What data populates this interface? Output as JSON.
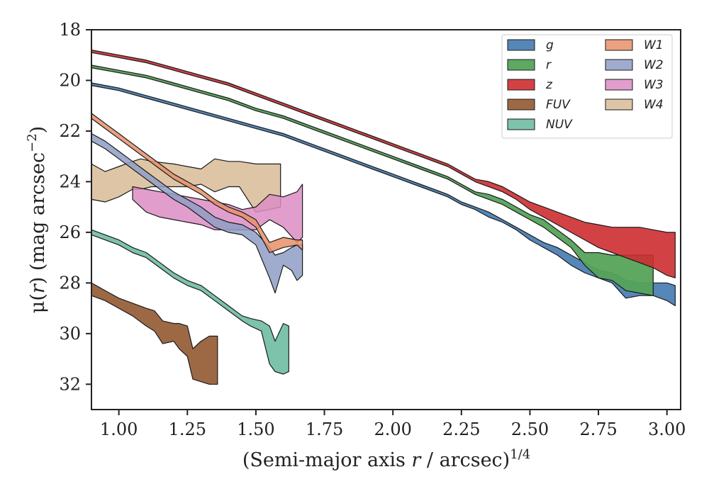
{
  "chart_data": {
    "type": "area",
    "xlabel": {
      "prefix": "(Semi-major axis ",
      "var": "r",
      "mid": " / arcsec)",
      "sup": "1/4"
    },
    "ylabel": {
      "prefix": "μ(",
      "var": "r",
      "mid": ") (mag arcsec",
      "sup": "−2",
      "suffix": ")"
    },
    "xlim": [
      0.9,
      3.05
    ],
    "ylim": [
      33.0,
      18.0
    ],
    "y_inverted": true,
    "xticks": [
      1.0,
      1.25,
      1.5,
      1.75,
      2.0,
      2.25,
      2.5,
      2.75,
      3.0
    ],
    "xtick_labels": [
      "1.00",
      "1.25",
      "1.50",
      "1.75",
      "2.00",
      "2.25",
      "2.50",
      "2.75",
      "3.00"
    ],
    "yticks": [
      18,
      20,
      22,
      24,
      26,
      28,
      30,
      32
    ],
    "ytick_labels": [
      "18",
      "20",
      "22",
      "24",
      "26",
      "28",
      "30",
      "32"
    ],
    "legend": {
      "placement": "top-right",
      "columns": 2
    },
    "series": [
      {
        "name": "FUV",
        "color": "#8c4f25",
        "alpha": 0.85,
        "x": [
          0.9,
          0.95,
          1.0,
          1.05,
          1.1,
          1.13,
          1.16,
          1.2,
          1.22,
          1.25,
          1.27,
          1.3,
          1.33,
          1.36
        ],
        "y_upper": [
          28.0,
          28.3,
          28.6,
          28.8,
          29.0,
          29.1,
          29.5,
          29.6,
          29.6,
          29.7,
          30.6,
          30.3,
          30.1,
          30.1
        ],
        "y_lower": [
          28.5,
          28.7,
          29.0,
          29.3,
          29.7,
          29.9,
          30.4,
          30.3,
          30.6,
          30.9,
          31.8,
          31.9,
          32.0,
          32.0
        ]
      },
      {
        "name": "NUV",
        "color": "#66b89c",
        "alpha": 0.85,
        "x": [
          0.9,
          0.95,
          1.0,
          1.05,
          1.1,
          1.15,
          1.2,
          1.25,
          1.3,
          1.35,
          1.4,
          1.45,
          1.48,
          1.52,
          1.55,
          1.57,
          1.6,
          1.62
        ],
        "y_upper": [
          25.9,
          26.1,
          26.3,
          26.6,
          26.8,
          27.2,
          27.6,
          27.9,
          28.1,
          28.5,
          28.9,
          29.3,
          29.4,
          29.5,
          29.7,
          30.3,
          29.6,
          29.7
        ],
        "y_lower": [
          26.1,
          26.3,
          26.5,
          26.8,
          27.0,
          27.4,
          27.8,
          28.1,
          28.3,
          28.7,
          29.1,
          29.5,
          29.7,
          29.9,
          31.2,
          31.5,
          31.6,
          31.5
        ]
      },
      {
        "name": "W4",
        "color": "#d8bb96",
        "alpha": 0.85,
        "x": [
          0.9,
          0.95,
          1.0,
          1.05,
          1.08,
          1.12,
          1.2,
          1.25,
          1.3,
          1.35,
          1.4,
          1.44,
          1.5,
          1.55,
          1.59
        ],
        "y_upper": [
          23.3,
          23.6,
          23.4,
          23.2,
          23.1,
          23.2,
          23.3,
          23.4,
          23.5,
          23.1,
          23.2,
          23.2,
          23.3,
          23.3,
          23.3
        ],
        "y_lower": [
          24.7,
          24.8,
          24.6,
          24.3,
          24.3,
          24.2,
          24.2,
          24.2,
          24.1,
          24.4,
          24.2,
          24.2,
          25.2,
          25.1,
          25.0
        ]
      },
      {
        "name": "W3",
        "color": "#dc8dc4",
        "alpha": 0.85,
        "x": [
          1.05,
          1.1,
          1.15,
          1.2,
          1.25,
          1.3,
          1.35,
          1.4,
          1.45,
          1.5,
          1.55,
          1.6,
          1.65,
          1.67
        ],
        "y_upper": [
          24.2,
          24.3,
          24.4,
          24.5,
          24.6,
          24.7,
          24.8,
          24.9,
          25.1,
          25.0,
          24.5,
          24.6,
          24.4,
          24.1
        ],
        "y_lower": [
          24.7,
          25.2,
          25.4,
          25.5,
          25.6,
          25.7,
          25.9,
          25.9,
          25.9,
          25.9,
          25.5,
          25.8,
          26.4,
          26.2
        ]
      },
      {
        "name": "W2",
        "color": "#8f9ec4",
        "alpha": 0.85,
        "x": [
          0.9,
          0.95,
          1.0,
          1.05,
          1.1,
          1.15,
          1.2,
          1.25,
          1.3,
          1.35,
          1.4,
          1.45,
          1.5,
          1.55,
          1.57,
          1.6,
          1.63,
          1.65,
          1.67
        ],
        "y_upper": [
          22.1,
          22.4,
          22.8,
          23.2,
          23.6,
          24.0,
          24.4,
          24.7,
          25.0,
          25.4,
          25.6,
          25.7,
          26.0,
          26.6,
          26.9,
          26.8,
          26.6,
          26.5,
          26.5
        ],
        "y_lower": [
          22.4,
          22.7,
          23.1,
          23.5,
          23.9,
          24.3,
          24.7,
          25.0,
          25.4,
          25.8,
          26.0,
          26.1,
          26.5,
          27.8,
          28.4,
          27.3,
          27.5,
          27.9,
          27.7
        ]
      },
      {
        "name": "W1",
        "color": "#e8906a",
        "alpha": 0.85,
        "x": [
          0.9,
          0.95,
          1.0,
          1.05,
          1.1,
          1.15,
          1.2,
          1.25,
          1.3,
          1.35,
          1.4,
          1.45,
          1.5,
          1.55,
          1.6,
          1.65,
          1.67
        ],
        "y_upper": [
          21.3,
          21.7,
          22.1,
          22.5,
          22.9,
          23.3,
          23.7,
          24.0,
          24.3,
          24.7,
          25.0,
          25.2,
          25.5,
          26.4,
          26.2,
          26.3,
          26.3
        ],
        "y_lower": [
          21.5,
          21.9,
          22.3,
          22.7,
          23.1,
          23.5,
          23.9,
          24.2,
          24.5,
          24.9,
          25.2,
          25.4,
          25.8,
          26.8,
          26.6,
          26.5,
          26.7
        ]
      },
      {
        "name": "g",
        "color": "#4c81b4",
        "alpha": 0.95,
        "x": [
          0.9,
          1.0,
          1.1,
          1.2,
          1.3,
          1.4,
          1.5,
          1.6,
          1.7,
          1.8,
          1.9,
          2.0,
          2.1,
          2.2,
          2.25,
          2.3,
          2.35,
          2.4,
          2.45,
          2.5,
          2.55,
          2.6,
          2.65,
          2.7,
          2.75,
          2.8,
          2.85,
          2.9,
          2.95,
          3.0,
          3.03
        ],
        "y_upper": [
          20.1,
          20.3,
          20.6,
          20.9,
          21.2,
          21.5,
          21.8,
          22.1,
          22.5,
          22.9,
          23.3,
          23.7,
          24.1,
          24.5,
          24.8,
          25.0,
          25.2,
          25.5,
          25.8,
          26.1,
          26.4,
          26.6,
          26.9,
          27.2,
          27.5,
          27.6,
          27.9,
          28.0,
          28.0,
          28.0,
          28.1
        ],
        "y_lower": [
          20.2,
          20.4,
          20.7,
          21.0,
          21.3,
          21.6,
          21.9,
          22.2,
          22.6,
          23.0,
          23.4,
          23.8,
          24.2,
          24.6,
          24.9,
          25.1,
          25.4,
          25.6,
          25.9,
          26.3,
          26.6,
          26.9,
          27.3,
          27.6,
          27.8,
          28.0,
          28.6,
          28.5,
          28.5,
          28.7,
          28.9
        ]
      },
      {
        "name": "r",
        "color": "#55a35a",
        "alpha": 0.95,
        "x": [
          0.9,
          1.0,
          1.1,
          1.2,
          1.3,
          1.4,
          1.5,
          1.6,
          1.7,
          1.8,
          1.9,
          2.0,
          2.1,
          2.2,
          2.25,
          2.3,
          2.35,
          2.4,
          2.45,
          2.5,
          2.55,
          2.6,
          2.65,
          2.7,
          2.75,
          2.8,
          2.85,
          2.9,
          2.95
        ],
        "y_upper": [
          19.4,
          19.6,
          19.8,
          20.1,
          20.4,
          20.7,
          21.1,
          21.4,
          21.8,
          22.2,
          22.6,
          23.0,
          23.4,
          23.8,
          24.1,
          24.4,
          24.5,
          24.7,
          25.0,
          25.3,
          25.5,
          25.9,
          26.3,
          26.8,
          26.8,
          26.9,
          26.9,
          26.9,
          26.9
        ],
        "y_lower": [
          19.5,
          19.7,
          19.9,
          20.2,
          20.5,
          20.8,
          21.2,
          21.5,
          21.9,
          22.3,
          22.7,
          23.1,
          23.5,
          23.9,
          24.2,
          24.5,
          24.7,
          24.9,
          25.2,
          25.5,
          25.8,
          26.2,
          26.6,
          27.3,
          27.8,
          27.9,
          28.3,
          28.4,
          28.5
        ]
      },
      {
        "name": "z",
        "color": "#cd2e31",
        "alpha": 0.9,
        "x": [
          0.9,
          1.0,
          1.1,
          1.2,
          1.3,
          1.4,
          1.5,
          1.6,
          1.7,
          1.8,
          1.9,
          2.0,
          2.1,
          2.2,
          2.25,
          2.3,
          2.35,
          2.4,
          2.45,
          2.5,
          2.55,
          2.6,
          2.65,
          2.7,
          2.75,
          2.8,
          2.85,
          2.9,
          2.95,
          3.0,
          3.03
        ],
        "y_upper": [
          18.8,
          19.0,
          19.2,
          19.5,
          19.8,
          20.1,
          20.5,
          20.9,
          21.3,
          21.7,
          22.1,
          22.5,
          22.9,
          23.3,
          23.6,
          23.9,
          24.0,
          24.2,
          24.5,
          24.8,
          25.0,
          25.2,
          25.4,
          25.6,
          25.7,
          25.8,
          25.8,
          25.8,
          25.9,
          26.0,
          26.0
        ],
        "y_lower": [
          18.9,
          19.1,
          19.3,
          19.6,
          19.9,
          20.2,
          20.6,
          21.0,
          21.4,
          21.8,
          22.2,
          22.6,
          23.0,
          23.4,
          23.7,
          24.0,
          24.2,
          24.4,
          24.7,
          25.1,
          25.4,
          25.7,
          26.0,
          26.3,
          26.6,
          26.8,
          27.0,
          27.2,
          27.4,
          27.7,
          27.8
        ]
      }
    ],
    "legend_order": [
      "g",
      "r",
      "z",
      "FUV",
      "NUV",
      "W1",
      "W2",
      "W3",
      "W4"
    ]
  }
}
